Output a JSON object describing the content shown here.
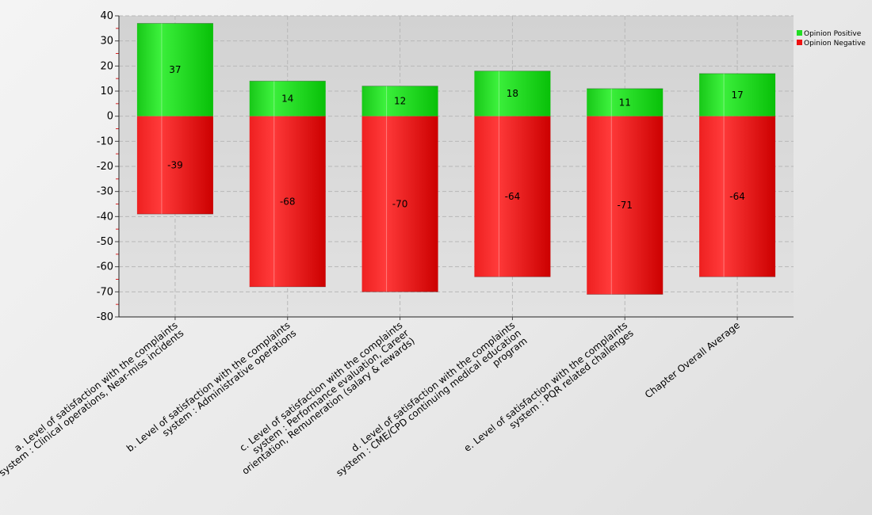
{
  "chart_data": {
    "type": "bar",
    "stacked": true,
    "categories": [
      [
        "a. Level of satisfaction with the complaints",
        "system : Clinical operations, Near-miss incidents"
      ],
      [
        "b. Level of satisfaction with the complaints",
        "system : Administrative operations"
      ],
      [
        "c. Level of satisfaction with the complaints",
        "system : Performance evaluation, Career",
        "orientation, Remuneration (salary & rewards)"
      ],
      [
        "d. Level of satisfaction with the complaints",
        "system : CME/CPD continuing medical education",
        "program"
      ],
      [
        "e. Level of satisfaction with the complaints",
        "system : PQR related challenges"
      ],
      [
        "Chapter Overall Average"
      ]
    ],
    "series": [
      {
        "name": "Opinion Positive",
        "color": "#22dd22",
        "values": [
          37,
          14,
          12,
          18,
          11,
          17
        ]
      },
      {
        "name": "Opinion Negative",
        "color": "#ee1111",
        "values": [
          -39,
          -68,
          -70,
          -64,
          -71,
          -64
        ]
      }
    ],
    "ylim": [
      -80,
      40
    ],
    "yticks": [
      40,
      30,
      20,
      10,
      0,
      -10,
      -20,
      -30,
      -40,
      -50,
      -60,
      -70,
      -80
    ],
    "grid": true,
    "legend_position": "top-right",
    "title": "",
    "xlabel": "",
    "ylabel": ""
  }
}
